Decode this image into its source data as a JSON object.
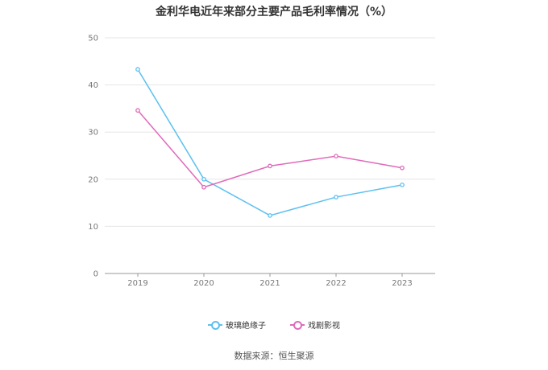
{
  "chart_data": {
    "type": "line",
    "title": "金利华电近年来部分主要产品毛利率情况（%）",
    "categories": [
      "2019",
      "2020",
      "2021",
      "2022",
      "2023"
    ],
    "ylim": [
      0,
      50
    ],
    "yticks": [
      0,
      10,
      20,
      30,
      40,
      50
    ],
    "grid": true,
    "legend_position": "bottom",
    "series": [
      {
        "name": "玻璃绝缘子",
        "color": "#5bc0f0",
        "values": [
          43.3,
          20.0,
          12.3,
          16.2,
          18.8
        ]
      },
      {
        "name": "戏剧影视",
        "color": "#e06aba",
        "values": [
          34.6,
          18.3,
          22.8,
          24.9,
          22.4
        ]
      }
    ],
    "source": "数据来源：恒生聚源"
  }
}
